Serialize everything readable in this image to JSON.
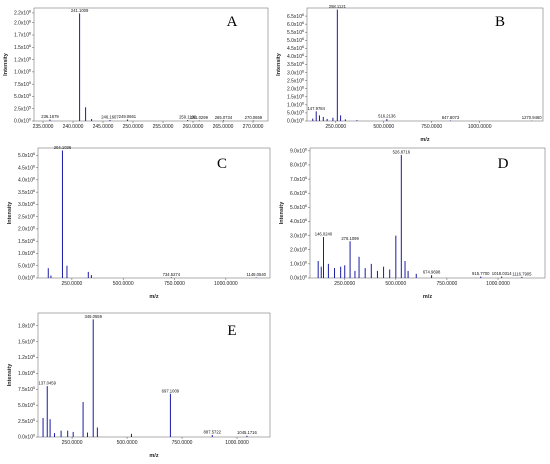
{
  "chart_data": [
    {
      "type": "bar",
      "panel": "A",
      "xlabel": "",
      "ylabel": "Intensity",
      "xlim": [
        233.5,
        272.5
      ],
      "ylim": [
        0,
        2300000
      ],
      "xticks": [
        235,
        240,
        245,
        250,
        255,
        260,
        265,
        270
      ],
      "xtick_labels": [
        "235.0000",
        "240.0000",
        "245.0000",
        "250.0000",
        "255.0000",
        "260.0000",
        "265.0000",
        "270.0000"
      ],
      "yticks": [
        0,
        250000,
        500000,
        750000,
        1000000,
        1250000,
        1500000,
        1750000,
        2000000,
        2200000
      ],
      "ytick_labels": [
        "0.0x10^0",
        "2.5x10^5",
        "5.0x10^5",
        "7.5x10^5",
        "1.0x10^6",
        "1.2x10^6",
        "1.5x10^6",
        "1.7x10^6",
        "2.0x10^6",
        "2.2x10^6"
      ],
      "peaks": [
        {
          "mz": 236.1679,
          "intensity": 30000,
          "label": "236.1679"
        },
        {
          "mz": 241.1009,
          "intensity": 2190000,
          "label": "241.1009"
        },
        {
          "mz": 242.1,
          "intensity": 280000
        },
        {
          "mz": 243.1,
          "intensity": 40000
        },
        {
          "mz": 246.16,
          "intensity": 20000,
          "label": "246.1607"
        },
        {
          "mz": 249.0661,
          "intensity": 30000,
          "label": "249.0661"
        },
        {
          "mz": 259.11,
          "intensity": 20000,
          "label": "259.1100"
        },
        {
          "mz": 261.0299,
          "intensity": 10000,
          "label": "261.0299"
        },
        {
          "mz": 265.0734,
          "intensity": 15000,
          "label": "265.0734"
        },
        {
          "mz": 270.0659,
          "intensity": 10000,
          "label": "270.0659"
        }
      ]
    },
    {
      "type": "bar",
      "panel": "B",
      "xlabel": "m/z",
      "ylabel": "Intensity",
      "xlim": [
        100,
        1330
      ],
      "ylim": [
        0,
        7000000
      ],
      "xticks": [
        250,
        500,
        750,
        1000
      ],
      "xtick_labels": [
        "250.0000",
        "500.0000",
        "750.0000",
        "1000.0000"
      ],
      "yticks": [
        0,
        500000,
        1000000,
        1500000,
        2000000,
        2500000,
        3000000,
        3500000,
        4000000,
        4500000,
        5000000,
        5500000,
        6000000,
        6500000
      ],
      "ytick_labels": [
        "0.0x10^0",
        "5.0x10^5",
        "1.0x10^6",
        "1.5x10^6",
        "2.0x10^6",
        "2.5x10^6",
        "3.0x10^6",
        "3.5x10^6",
        "4.0x10^6",
        "4.5x10^6",
        "5.0x10^6",
        "5.5x10^6",
        "6.0x10^6",
        "6.5x10^6"
      ],
      "peaks": [
        {
          "mz": 130,
          "intensity": 150000
        },
        {
          "mz": 147.9784,
          "intensity": 600000,
          "label": "147.9784"
        },
        {
          "mz": 165,
          "intensity": 350000
        },
        {
          "mz": 185,
          "intensity": 250000
        },
        {
          "mz": 205,
          "intensity": 130000
        },
        {
          "mz": 235,
          "intensity": 200000
        },
        {
          "mz": 258.1121,
          "intensity": 6900000,
          "label": "258.1121"
        },
        {
          "mz": 275,
          "intensity": 350000
        },
        {
          "mz": 300,
          "intensity": 100000
        },
        {
          "mz": 360,
          "intensity": 50000
        },
        {
          "mz": 516.2136,
          "intensity": 120000,
          "label": "516.2136"
        },
        {
          "mz": 847.8073,
          "intensity": 30000,
          "label": "847.8073"
        },
        {
          "mz": 1270.946,
          "intensity": 20000,
          "label": "1270.9460"
        }
      ]
    },
    {
      "type": "bar",
      "panel": "C",
      "xlabel": "m/z",
      "ylabel": "Intensity",
      "xlim": [
        85,
        1215
      ],
      "ylim": [
        0,
        5300000
      ],
      "xticks": [
        250,
        500,
        750,
        1000
      ],
      "xtick_labels": [
        "250.0000",
        "500.0000",
        "750.0000",
        "1000.0000"
      ],
      "yticks": [
        0,
        500000,
        1000000,
        1500000,
        2000000,
        2500000,
        3000000,
        3500000,
        4000000,
        4500000,
        5000000
      ],
      "ytick_labels": [
        "0.0x10^0",
        "5.0x10^5",
        "1.0x10^6",
        "1.5x10^6",
        "2.0x10^6",
        "2.5x10^6",
        "3.0x10^6",
        "3.5x10^6",
        "4.0x10^6",
        "4.5x10^6",
        "5.0x10^6"
      ],
      "peaks": [
        {
          "mz": 135,
          "intensity": 400000
        },
        {
          "mz": 148,
          "intensity": 100000
        },
        {
          "mz": 204.1036,
          "intensity": 5200000,
          "label": "204.1036"
        },
        {
          "mz": 226,
          "intensity": 500000
        },
        {
          "mz": 330,
          "intensity": 250000
        },
        {
          "mz": 345,
          "intensity": 120000
        },
        {
          "mz": 734.5274,
          "intensity": 30000,
          "label": "734.5274"
        },
        {
          "mz": 1148.054,
          "intensity": 20000,
          "label": "1148.0540"
        }
      ]
    },
    {
      "type": "bar",
      "panel": "D",
      "xlabel": "m/z",
      "ylabel": "Intensity",
      "xlim": [
        80,
        1230
      ],
      "ylim": [
        0,
        9200000
      ],
      "xticks": [
        250,
        500,
        750,
        1000
      ],
      "xtick_labels": [
        "250.0000",
        "500.0000",
        "750.0000",
        "1000.0000"
      ],
      "yticks": [
        0,
        1000000,
        2000000,
        3000000,
        4000000,
        5000000,
        6000000,
        7000000,
        8000000,
        9000000
      ],
      "ytick_labels": [
        "0.0x10^0",
        "1.0x10^6",
        "2.0x10^6",
        "3.0x10^6",
        "4.0x10^6",
        "5.0x10^6",
        "6.0x10^6",
        "7.0x10^6",
        "8.0x10^6",
        "9.0x10^6"
      ],
      "peaks": [
        {
          "mz": 120,
          "intensity": 1200000
        },
        {
          "mz": 135,
          "intensity": 800000
        },
        {
          "mz": 146.024,
          "intensity": 2900000,
          "label": "146.0240"
        },
        {
          "mz": 170,
          "intensity": 1000000
        },
        {
          "mz": 200,
          "intensity": 700000
        },
        {
          "mz": 230,
          "intensity": 800000
        },
        {
          "mz": 250,
          "intensity": 900000
        },
        {
          "mz": 276.1099,
          "intensity": 2600000,
          "label": "276.1099"
        },
        {
          "mz": 300,
          "intensity": 500000
        },
        {
          "mz": 320,
          "intensity": 1500000
        },
        {
          "mz": 350,
          "intensity": 700000
        },
        {
          "mz": 380,
          "intensity": 1000000
        },
        {
          "mz": 410,
          "intensity": 500000
        },
        {
          "mz": 440,
          "intensity": 800000
        },
        {
          "mz": 470,
          "intensity": 600000
        },
        {
          "mz": 500,
          "intensity": 3000000
        },
        {
          "mz": 526.8716,
          "intensity": 8700000,
          "label": "526.8716"
        },
        {
          "mz": 545,
          "intensity": 1200000
        },
        {
          "mz": 560,
          "intensity": 500000
        },
        {
          "mz": 600,
          "intensity": 300000
        },
        {
          "mz": 674.9698,
          "intensity": 200000,
          "label": "674.9698"
        },
        {
          "mz": 915.77,
          "intensity": 100000,
          "label": "915.7700"
        },
        {
          "mz": 1018.0314,
          "intensity": 100000,
          "label": "1018.0314"
        },
        {
          "mz": 1116.7905,
          "intensity": 80000,
          "label": "1116.7905"
        }
      ]
    },
    {
      "type": "bar",
      "panel": "E",
      "xlabel": "m/z",
      "ylabel": "Intensity",
      "xlim": [
        95,
        1150
      ],
      "ylim": [
        0,
        1950000
      ],
      "xticks": [
        250,
        500,
        750,
        1000
      ],
      "xtick_labels": [
        "250.0000",
        "500.0000",
        "750.0000",
        "1000.0000"
      ],
      "yticks": [
        0,
        250000,
        500000,
        750000,
        1000000,
        1250000,
        1500000,
        1750000
      ],
      "ytick_labels": [
        "0.0x10^0",
        "2.5x10^5",
        "5.0x10^5",
        "7.5x10^5",
        "1.0x10^6",
        "1.2x10^6",
        "1.5x10^6",
        "1.8x10^6"
      ],
      "peaks": [
        {
          "mz": 118,
          "intensity": 300000
        },
        {
          "mz": 137.0459,
          "intensity": 800000,
          "label": "137.0459"
        },
        {
          "mz": 150,
          "intensity": 280000
        },
        {
          "mz": 170,
          "intensity": 60000
        },
        {
          "mz": 200,
          "intensity": 100000
        },
        {
          "mz": 230,
          "intensity": 100000
        },
        {
          "mz": 255,
          "intensity": 80000
        },
        {
          "mz": 300,
          "intensity": 550000
        },
        {
          "mz": 320,
          "intensity": 70000
        },
        {
          "mz": 346.0559,
          "intensity": 1850000,
          "label": "346.0559"
        },
        {
          "mz": 365,
          "intensity": 150000
        },
        {
          "mz": 520,
          "intensity": 50000
        },
        {
          "mz": 697.1009,
          "intensity": 680000,
          "label": "697.1009"
        },
        {
          "mz": 887.5722,
          "intensity": 30000,
          "label": "887.5722"
        },
        {
          "mz": 1045.1716,
          "intensity": 20000,
          "label": "1045.1716"
        }
      ]
    }
  ]
}
